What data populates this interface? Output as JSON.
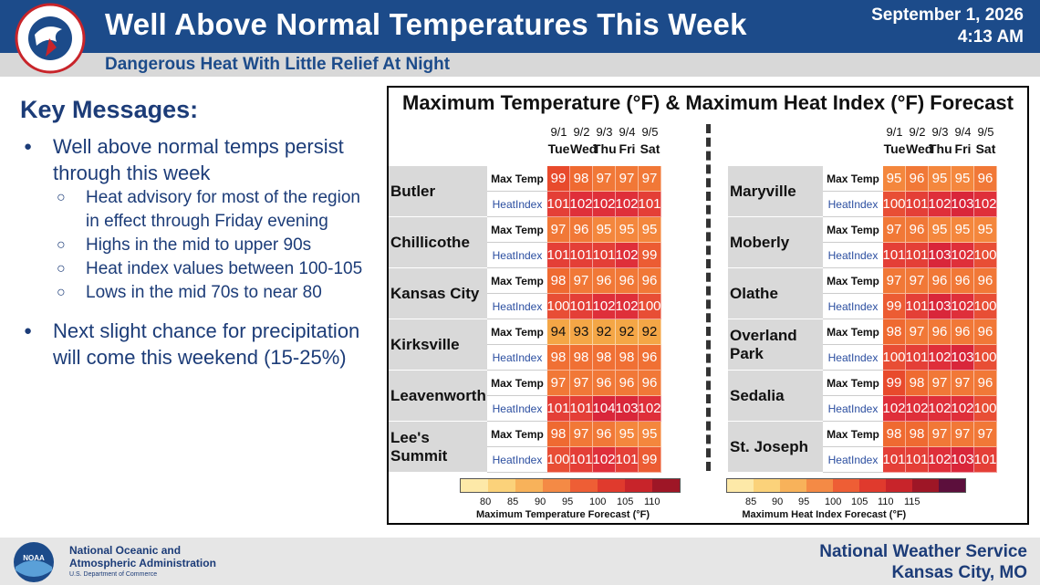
{
  "header": {
    "title": "Well Above Normal Temperatures This Week",
    "subtitle": "Dangerous Heat With Little Relief At Night",
    "date": "September 1, 2026",
    "time": "4:13 AM"
  },
  "key_messages": {
    "title": "Key Messages:",
    "bullets": [
      {
        "text": "Well above normal temps persist through this week",
        "sub": [
          "Heat advisory for most of the region in effect through Friday evening",
          "Highs in the mid to upper 90s",
          "Heat index values between 100-105",
          "Lows in the mid 70s to near 80"
        ]
      },
      {
        "text": "Next slight chance for precipitation will come this weekend (15-25%)",
        "sub": []
      }
    ]
  },
  "chart": {
    "title": "Maximum Temperature (°F) & Maximum Heat Index (°F) Forecast",
    "dates": [
      "9/1",
      "9/2",
      "9/3",
      "9/4",
      "9/5"
    ],
    "days": [
      "Tue",
      "Wed",
      "Thu",
      "Fri",
      "Sat"
    ],
    "row_labels": {
      "max": "Max Temp",
      "hi": "HeatIndex"
    },
    "left": [
      {
        "city": "Butler",
        "max": [
          99,
          98,
          97,
          97,
          97
        ],
        "hi": [
          101,
          102,
          102,
          102,
          101
        ]
      },
      {
        "city": "Chillicothe",
        "max": [
          97,
          96,
          95,
          95,
          95
        ],
        "hi": [
          101,
          101,
          101,
          102,
          99
        ]
      },
      {
        "city": "Kansas City",
        "max": [
          98,
          97,
          96,
          96,
          96
        ],
        "hi": [
          100,
          101,
          102,
          102,
          100
        ]
      },
      {
        "city": "Kirksville",
        "max": [
          94,
          93,
          92,
          92,
          92
        ],
        "hi": [
          98,
          98,
          98,
          98,
          96
        ]
      },
      {
        "city": "Leavenworth",
        "max": [
          97,
          97,
          96,
          96,
          96
        ],
        "hi": [
          101,
          101,
          104,
          103,
          102
        ]
      },
      {
        "city": "Lee's Summit",
        "max": [
          98,
          97,
          96,
          95,
          95
        ],
        "hi": [
          100,
          101,
          102,
          101,
          99
        ]
      }
    ],
    "right": [
      {
        "city": "Maryville",
        "max": [
          95,
          96,
          95,
          95,
          96
        ],
        "hi": [
          100,
          101,
          102,
          103,
          102
        ]
      },
      {
        "city": "Moberly",
        "max": [
          97,
          96,
          95,
          95,
          95
        ],
        "hi": [
          101,
          101,
          103,
          102,
          100
        ]
      },
      {
        "city": "Olathe",
        "max": [
          97,
          97,
          96,
          96,
          96
        ],
        "hi": [
          99,
          101,
          103,
          102,
          100
        ]
      },
      {
        "city": "Overland Park",
        "max": [
          98,
          97,
          96,
          96,
          96
        ],
        "hi": [
          100,
          101,
          102,
          103,
          100
        ]
      },
      {
        "city": "Sedalia",
        "max": [
          99,
          98,
          97,
          97,
          96
        ],
        "hi": [
          102,
          102,
          102,
          102,
          100
        ]
      },
      {
        "city": "St. Joseph",
        "max": [
          98,
          98,
          97,
          97,
          97
        ],
        "hi": [
          101,
          101,
          102,
          103,
          101
        ]
      }
    ],
    "legend_temp": {
      "ticks": [
        "80",
        "85",
        "90",
        "95",
        "100",
        "105",
        "110"
      ],
      "label": "Maximum Temperature Forecast (°F)",
      "colors": [
        "#fde9a8",
        "#fbd27a",
        "#f8b25a",
        "#f48a45",
        "#ee5e35",
        "#e03a2d",
        "#c8242a",
        "#9e1626"
      ]
    },
    "legend_hi": {
      "ticks": [
        "85",
        "90",
        "95",
        "100",
        "105",
        "110",
        "115"
      ],
      "label": "Maximum Heat Index Forecast (°F)",
      "colors": [
        "#fde9a8",
        "#fbd27a",
        "#f8b25a",
        "#f48a45",
        "#ee5e35",
        "#e03a2d",
        "#c8242a",
        "#9e1626",
        "#5c0f3c"
      ]
    }
  },
  "footer": {
    "agency_line1": "National Oceanic and",
    "agency_line2": "Atmospheric Administration",
    "dept": "U.S. Department of Commerce",
    "office_line1": "National Weather Service",
    "office_line2": "Kansas City, MO",
    "noaa_badge": "NOAA",
    "nws_ring": "NATIONAL WEATHER SERVICE"
  }
}
